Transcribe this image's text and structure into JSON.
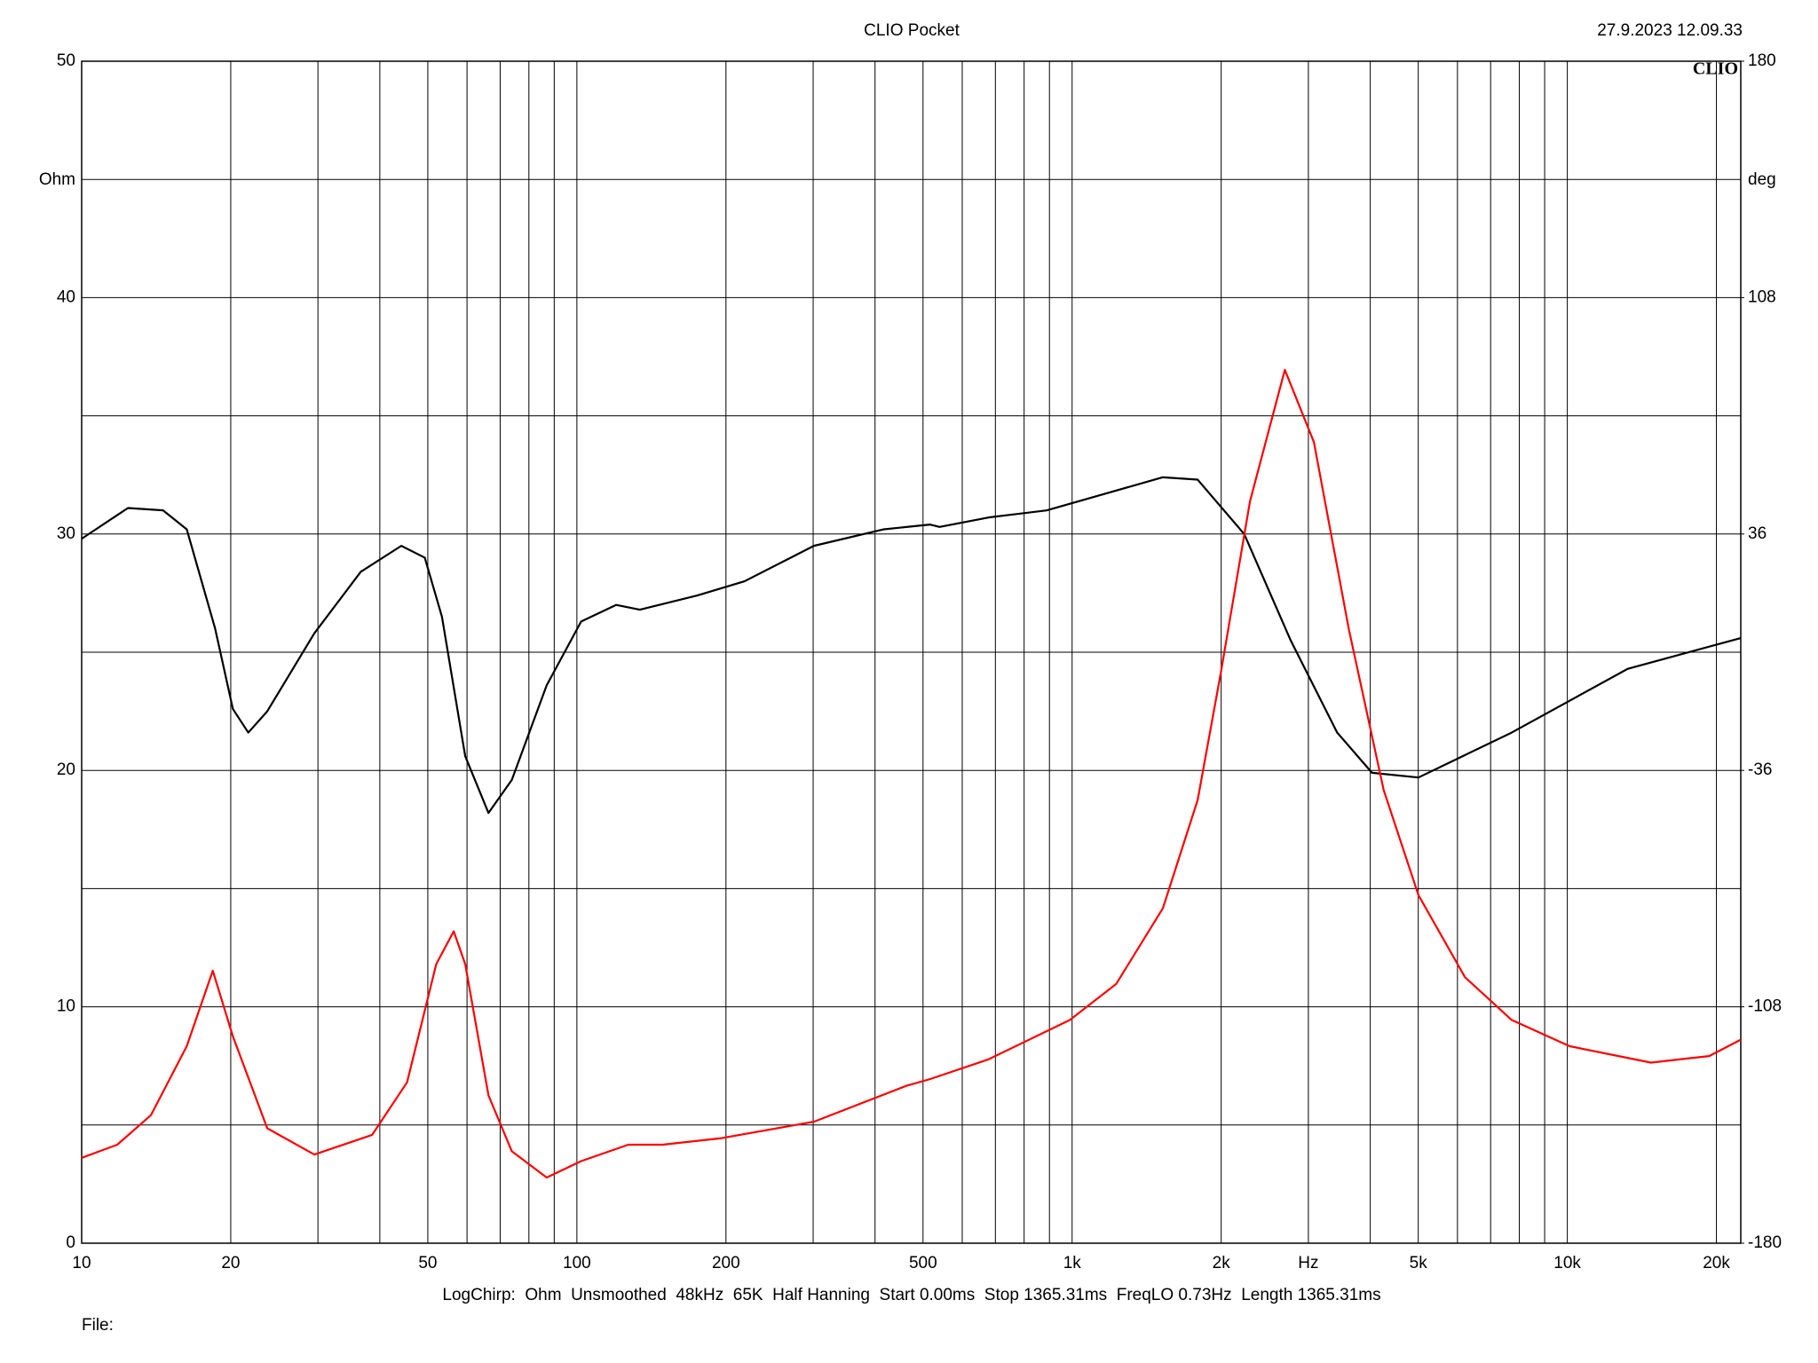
{
  "chart_data": {
    "type": "line",
    "title": "CLIO Pocket",
    "timestamp": "27.9.2023 12.09.33",
    "logo": "CLIO",
    "footer": "LogChirp:  Ohm  Unsmoothed  48kHz  65K  Half Hanning  Start 0.00ms  Stop 1365.31ms  FreqLO 0.73Hz  Length 1365.31ms",
    "file_label": "File:",
    "ylabel": "Ohm",
    "y2label": "deg",
    "log_x": true,
    "grid": true,
    "xlim": [
      10,
      22400
    ],
    "xticks": [
      10,
      20,
      50,
      100,
      200,
      500,
      {
        "value": 1000,
        "label": "1k"
      },
      {
        "value": 2000,
        "label": "2k"
      },
      {
        "value": 3000,
        "label": "Hz"
      },
      {
        "value": 5000,
        "label": "5k"
      },
      {
        "value": 10000,
        "label": "10k"
      },
      {
        "value": 20000,
        "label": "20k"
      }
    ],
    "xminor": [
      30,
      40,
      60,
      70,
      80,
      90,
      300,
      400,
      600,
      700,
      800,
      900,
      4000,
      6000,
      7000,
      8000,
      9000
    ],
    "ylim": [
      0,
      50
    ],
    "yticks": [
      0,
      10,
      20,
      30,
      40,
      50
    ],
    "yminor": [
      5,
      15,
      25,
      35,
      45
    ],
    "y2lim": [
      -180,
      180
    ],
    "y2ticks": [
      -180,
      -108,
      -36,
      36,
      108,
      180
    ],
    "series": [
      {
        "color": "#000000",
        "axis": "y",
        "x": [
          10,
          12.4,
          14.6,
          16.3,
          18.6,
          20.2,
          21.7,
          23.7,
          29.5,
          36.6,
          44.2,
          49.3,
          53.4,
          59.5,
          66.3,
          73.9,
          86.9,
          102,
          120,
          134,
          175,
          218,
          301,
          417,
          517,
          540,
          678,
          888,
          1163,
          1525,
          1793,
          2226,
          2763,
          3430,
          4033,
          5005,
          7718,
          13250,
          22400
        ],
        "values": [
          29.8,
          31.1,
          31.0,
          30.2,
          26.0,
          22.6,
          21.6,
          22.5,
          25.8,
          28.4,
          29.5,
          29.0,
          26.5,
          20.6,
          18.2,
          19.6,
          23.6,
          26.3,
          27.0,
          26.8,
          27.4,
          28.0,
          29.5,
          30.2,
          30.4,
          30.3,
          30.7,
          31.0,
          31.7,
          32.4,
          32.3,
          30.0,
          25.5,
          21.6,
          19.9,
          19.7,
          21.6,
          24.3,
          25.6
        ]
      },
      {
        "color": "#ff0000",
        "axis": "y2",
        "x": [
          10,
          11.8,
          13.8,
          16.3,
          18.4,
          20.2,
          23.7,
          29.5,
          38.6,
          45.4,
          52.0,
          56.4,
          59.5,
          66.3,
          73.9,
          86.9,
          102,
          127,
          149,
          196,
          301,
          464,
          517,
          678,
          990,
          1228,
          1525,
          1793,
          1998,
          2287,
          2689,
          3078,
          3621,
          4258,
          5005,
          6215,
          7718,
          10110,
          14760,
          19340,
          22400
        ],
        "values": [
          -154,
          -150,
          -141,
          -120,
          -97,
          -117,
          -145,
          -153,
          -147,
          -131,
          -95,
          -85,
          -95,
          -135,
          -152,
          -160,
          -155,
          -150,
          -150,
          -148,
          -143,
          -132,
          -130,
          -124,
          -112,
          -101,
          -78,
          -45,
          -6,
          46,
          86,
          64,
          7,
          -42,
          -74,
          -99,
          -112,
          -120,
          -125,
          -123,
          -118
        ]
      }
    ]
  }
}
